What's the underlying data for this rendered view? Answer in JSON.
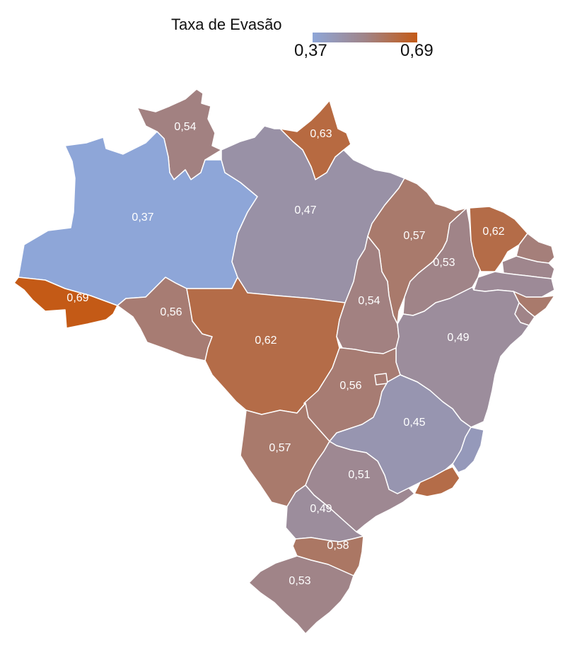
{
  "legend": {
    "title": "Taxa de Evasão",
    "min_label": "0,37",
    "max_label": "0,69",
    "min_value": 0.37,
    "max_value": 0.69,
    "color_min": "#8ea6d8",
    "color_mid": "#a08488",
    "color_max": "#c45a16"
  },
  "regions": [
    {
      "id": "rr",
      "label": "0,54",
      "value": 0.54
    },
    {
      "id": "ap",
      "label": "0,63",
      "value": 0.63
    },
    {
      "id": "am",
      "label": "0,37",
      "value": 0.37
    },
    {
      "id": "pa",
      "label": "0,47",
      "value": 0.47
    },
    {
      "id": "ac",
      "label": "0,69",
      "value": 0.69
    },
    {
      "id": "ro",
      "label": "0,56",
      "value": 0.56
    },
    {
      "id": "mt",
      "label": "0,62",
      "value": 0.62
    },
    {
      "id": "ma",
      "label": "0,57",
      "value": 0.57
    },
    {
      "id": "pi",
      "label": "0,53",
      "value": 0.53
    },
    {
      "id": "ce",
      "label": "0,62",
      "value": 0.62
    },
    {
      "id": "rn",
      "label": "",
      "value": null
    },
    {
      "id": "pb",
      "label": "",
      "value": null
    },
    {
      "id": "pe",
      "label": "",
      "value": null
    },
    {
      "id": "al",
      "label": "",
      "value": null
    },
    {
      "id": "se",
      "label": "",
      "value": null
    },
    {
      "id": "to",
      "label": "0,54",
      "value": 0.54
    },
    {
      "id": "ba",
      "label": "0,49",
      "value": 0.49
    },
    {
      "id": "go",
      "label": "0,56",
      "value": 0.56
    },
    {
      "id": "df",
      "label": "",
      "value": null
    },
    {
      "id": "mg",
      "label": "0,45",
      "value": 0.45
    },
    {
      "id": "es",
      "label": "",
      "value": null
    },
    {
      "id": "rj",
      "label": "",
      "value": null
    },
    {
      "id": "ms",
      "label": "0,57",
      "value": 0.57
    },
    {
      "id": "sp",
      "label": "0,51",
      "value": 0.51
    },
    {
      "id": "pr",
      "label": "0,49",
      "value": 0.49
    },
    {
      "id": "sc",
      "label": "0,58",
      "value": 0.58
    },
    {
      "id": "rs",
      "label": "0,53",
      "value": 0.53
    }
  ]
}
